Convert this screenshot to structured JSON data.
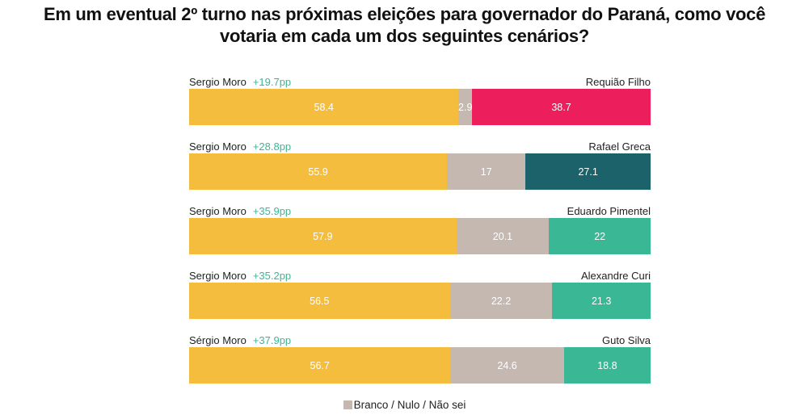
{
  "title_line1": "Em um eventual 2º turno nas próximas eleições para governador do Paraná, como você",
  "title_line2": "votaria em cada um dos seguintes cenários?",
  "colors": {
    "moro": "#f5bd3d",
    "blank": "#c5b8b0",
    "requiao": "#ed1e5c",
    "greca": "#1c626b",
    "others": "#3ab795",
    "lead_text": "#3ab795"
  },
  "legend": {
    "label": "Branco / Nulo / Não sei"
  },
  "chart_data": {
    "type": "bar",
    "orientation": "horizontal-stacked-100",
    "title": "Em um eventual 2º turno nas próximas eleições para governador do Paraná, como você votaria em cada um dos seguintes cenários?",
    "xlim": [
      0,
      100
    ],
    "legend": [
      "Branco / Nulo / Não sei"
    ],
    "legend_position": "bottom",
    "scenarios": [
      {
        "left": "Sergio Moro",
        "lead": "+19.7pp",
        "right": "Requião Filho",
        "moro": 58.4,
        "blank": 2.9,
        "opponent": 38.7,
        "opponent_color_key": "requiao"
      },
      {
        "left": "Sergio Moro",
        "lead": "+28.8pp",
        "right": "Rafael Greca",
        "moro": 55.9,
        "blank": 17,
        "opponent": 27.1,
        "opponent_color_key": "greca"
      },
      {
        "left": "Sergio Moro",
        "lead": "+35.9pp",
        "right": "Eduardo Pimentel",
        "moro": 57.9,
        "blank": 20.1,
        "opponent": 22,
        "opponent_color_key": "others"
      },
      {
        "left": "Sergio Moro",
        "lead": "+35.2pp",
        "right": "Alexandre Curi",
        "moro": 56.5,
        "blank": 22.2,
        "opponent": 21.3,
        "opponent_color_key": "others"
      },
      {
        "left": "Sérgio Moro",
        "lead": "+37.9pp",
        "right": "Guto Silva",
        "moro": 56.7,
        "blank": 24.6,
        "opponent": 18.8,
        "opponent_color_key": "others"
      }
    ]
  }
}
